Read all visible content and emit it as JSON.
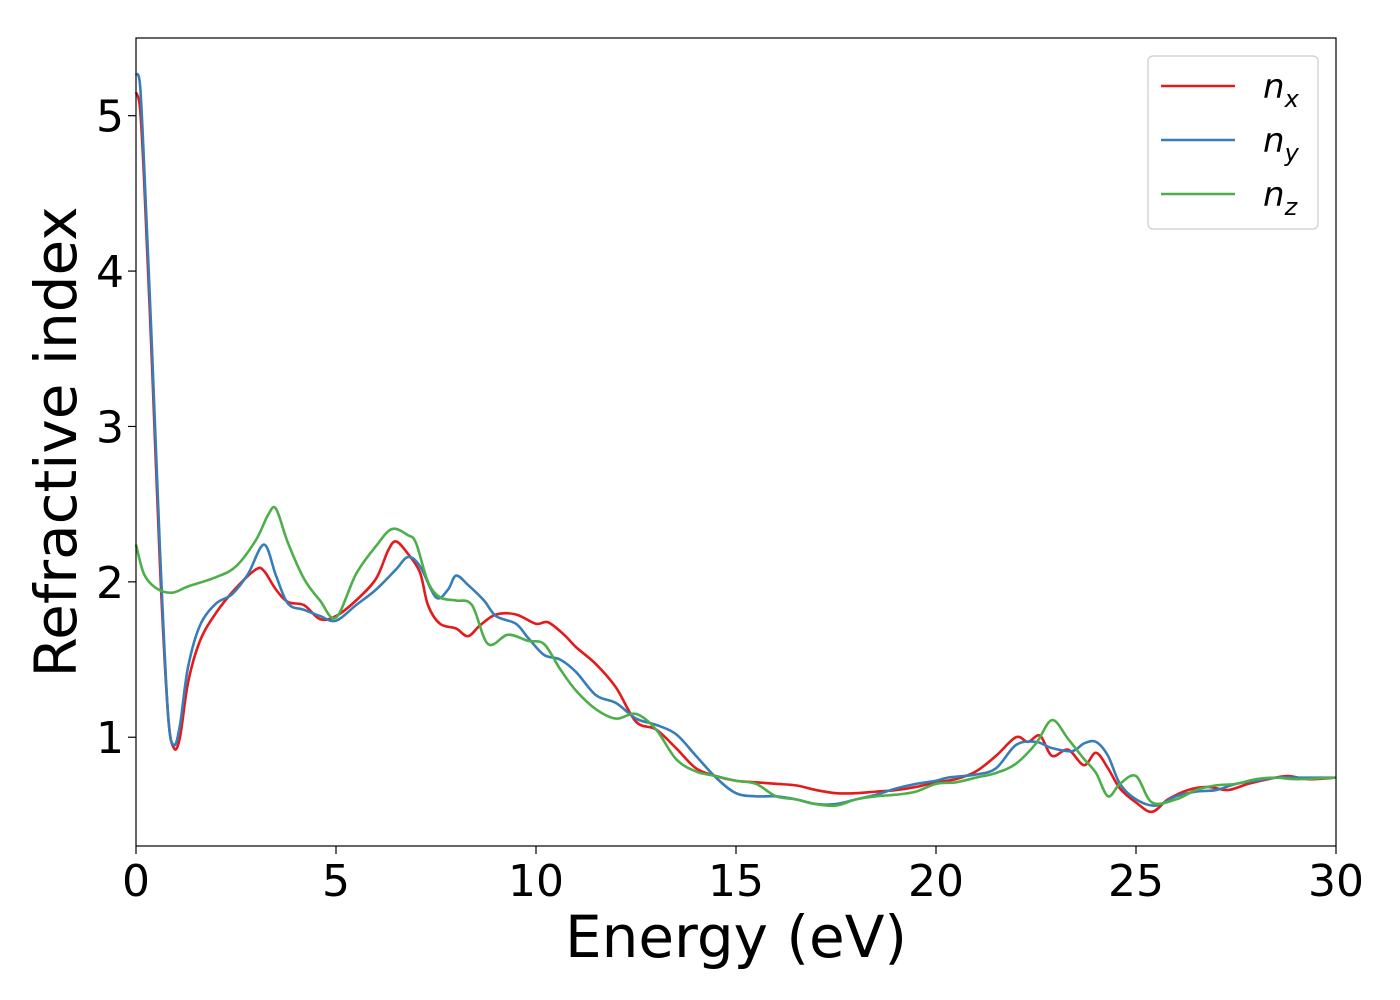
{
  "chart_data": {
    "type": "line",
    "xlabel": "Energy (eV)",
    "ylabel": "Refractive index",
    "xlim": [
      0,
      30
    ],
    "ylim": [
      0.3,
      5.5
    ],
    "x_ticks": [
      0,
      5,
      10,
      15,
      20,
      25,
      30
    ],
    "x_tick_labels": [
      "0",
      "5",
      "10",
      "15",
      "20",
      "25",
      "30"
    ],
    "y_ticks": [
      1,
      2,
      3,
      4,
      5
    ],
    "y_tick_labels": [
      "1",
      "2",
      "3",
      "4",
      "5"
    ],
    "grid": false,
    "legend_position": "top-right",
    "series": [
      {
        "name": "n_x",
        "base": "n",
        "subscript": "x",
        "color": "#e41a1c",
        "points": [
          [
            0,
            5.15
          ],
          [
            0.1,
            5.05
          ],
          [
            0.2,
            4.6
          ],
          [
            0.4,
            3.4
          ],
          [
            0.6,
            2.1
          ],
          [
            0.8,
            1.15
          ],
          [
            0.95,
            0.93
          ],
          [
            1.1,
            1.0
          ],
          [
            1.3,
            1.35
          ],
          [
            1.6,
            1.62
          ],
          [
            2.0,
            1.8
          ],
          [
            2.5,
            1.96
          ],
          [
            3.0,
            2.08
          ],
          [
            3.2,
            2.07
          ],
          [
            3.5,
            1.95
          ],
          [
            3.8,
            1.87
          ],
          [
            4.2,
            1.85
          ],
          [
            4.6,
            1.76
          ],
          [
            5.0,
            1.78
          ],
          [
            5.5,
            1.88
          ],
          [
            6.0,
            2.02
          ],
          [
            6.3,
            2.2
          ],
          [
            6.5,
            2.26
          ],
          [
            6.8,
            2.18
          ],
          [
            7.1,
            2.06
          ],
          [
            7.3,
            1.85
          ],
          [
            7.6,
            1.73
          ],
          [
            8.0,
            1.7
          ],
          [
            8.3,
            1.65
          ],
          [
            8.6,
            1.72
          ],
          [
            9.0,
            1.79
          ],
          [
            9.5,
            1.79
          ],
          [
            10.0,
            1.73
          ],
          [
            10.3,
            1.74
          ],
          [
            10.7,
            1.66
          ],
          [
            11.0,
            1.58
          ],
          [
            11.5,
            1.47
          ],
          [
            12.0,
            1.32
          ],
          [
            12.5,
            1.1
          ],
          [
            13.0,
            1.05
          ],
          [
            13.5,
            0.93
          ],
          [
            14.0,
            0.8
          ],
          [
            14.5,
            0.75
          ],
          [
            15.0,
            0.72
          ],
          [
            15.5,
            0.71
          ],
          [
            16.0,
            0.7
          ],
          [
            16.5,
            0.69
          ],
          [
            17.0,
            0.66
          ],
          [
            17.5,
            0.64
          ],
          [
            18.0,
            0.64
          ],
          [
            18.5,
            0.65
          ],
          [
            19.0,
            0.66
          ],
          [
            19.5,
            0.68
          ],
          [
            20.0,
            0.71
          ],
          [
            20.5,
            0.73
          ],
          [
            21.0,
            0.78
          ],
          [
            21.5,
            0.88
          ],
          [
            22.0,
            1.0
          ],
          [
            22.3,
            0.97
          ],
          [
            22.6,
            1.01
          ],
          [
            22.9,
            0.88
          ],
          [
            23.3,
            0.92
          ],
          [
            23.7,
            0.82
          ],
          [
            24.0,
            0.9
          ],
          [
            24.3,
            0.8
          ],
          [
            24.6,
            0.67
          ],
          [
            25.0,
            0.58
          ],
          [
            25.4,
            0.52
          ],
          [
            25.8,
            0.6
          ],
          [
            26.3,
            0.66
          ],
          [
            26.8,
            0.68
          ],
          [
            27.3,
            0.66
          ],
          [
            27.8,
            0.7
          ],
          [
            28.3,
            0.73
          ],
          [
            28.8,
            0.75
          ],
          [
            29.3,
            0.73
          ],
          [
            30.0,
            0.74
          ]
        ]
      },
      {
        "name": "n_y",
        "base": "n",
        "subscript": "y",
        "color": "#377eb8",
        "points": [
          [
            0,
            5.27
          ],
          [
            0.1,
            5.2
          ],
          [
            0.2,
            4.7
          ],
          [
            0.4,
            3.5
          ],
          [
            0.6,
            2.2
          ],
          [
            0.8,
            1.15
          ],
          [
            0.95,
            0.95
          ],
          [
            1.1,
            1.08
          ],
          [
            1.3,
            1.45
          ],
          [
            1.6,
            1.72
          ],
          [
            2.0,
            1.86
          ],
          [
            2.4,
            1.92
          ],
          [
            2.8,
            2.05
          ],
          [
            3.2,
            2.24
          ],
          [
            3.5,
            2.04
          ],
          [
            3.8,
            1.86
          ],
          [
            4.2,
            1.82
          ],
          [
            4.6,
            1.78
          ],
          [
            5.0,
            1.75
          ],
          [
            5.5,
            1.85
          ],
          [
            6.0,
            1.95
          ],
          [
            6.5,
            2.08
          ],
          [
            6.8,
            2.16
          ],
          [
            7.1,
            2.1
          ],
          [
            7.5,
            1.9
          ],
          [
            7.8,
            1.95
          ],
          [
            8.0,
            2.04
          ],
          [
            8.3,
            1.98
          ],
          [
            8.7,
            1.88
          ],
          [
            9.0,
            1.78
          ],
          [
            9.5,
            1.73
          ],
          [
            9.8,
            1.64
          ],
          [
            10.2,
            1.53
          ],
          [
            10.6,
            1.5
          ],
          [
            11.0,
            1.42
          ],
          [
            11.5,
            1.27
          ],
          [
            12.0,
            1.22
          ],
          [
            12.5,
            1.12
          ],
          [
            13.0,
            1.08
          ],
          [
            13.5,
            1.02
          ],
          [
            14.0,
            0.88
          ],
          [
            14.5,
            0.74
          ],
          [
            15.0,
            0.64
          ],
          [
            15.5,
            0.62
          ],
          [
            16.0,
            0.62
          ],
          [
            16.5,
            0.6
          ],
          [
            17.0,
            0.57
          ],
          [
            17.5,
            0.57
          ],
          [
            18.0,
            0.6
          ],
          [
            18.5,
            0.63
          ],
          [
            19.0,
            0.67
          ],
          [
            19.5,
            0.7
          ],
          [
            20.0,
            0.72
          ],
          [
            20.3,
            0.74
          ],
          [
            21.0,
            0.76
          ],
          [
            21.5,
            0.8
          ],
          [
            22.0,
            0.95
          ],
          [
            22.5,
            0.97
          ],
          [
            22.9,
            0.93
          ],
          [
            23.4,
            0.91
          ],
          [
            23.7,
            0.96
          ],
          [
            24.0,
            0.97
          ],
          [
            24.3,
            0.88
          ],
          [
            24.6,
            0.7
          ],
          [
            25.0,
            0.6
          ],
          [
            25.5,
            0.56
          ],
          [
            26.0,
            0.62
          ],
          [
            26.5,
            0.65
          ],
          [
            27.0,
            0.66
          ],
          [
            27.5,
            0.7
          ],
          [
            28.0,
            0.72
          ],
          [
            28.5,
            0.74
          ],
          [
            29.0,
            0.74
          ],
          [
            30.0,
            0.74
          ]
        ]
      },
      {
        "name": "n_z",
        "base": "n",
        "subscript": "z",
        "color": "#4daf4a",
        "points": [
          [
            0,
            2.24
          ],
          [
            0.2,
            2.05
          ],
          [
            0.5,
            1.96
          ],
          [
            0.9,
            1.93
          ],
          [
            1.3,
            1.97
          ],
          [
            2.0,
            2.03
          ],
          [
            2.5,
            2.1
          ],
          [
            3.0,
            2.27
          ],
          [
            3.3,
            2.43
          ],
          [
            3.5,
            2.47
          ],
          [
            3.8,
            2.25
          ],
          [
            4.2,
            2.02
          ],
          [
            4.6,
            1.88
          ],
          [
            5.0,
            1.77
          ],
          [
            5.5,
            2.05
          ],
          [
            6.0,
            2.23
          ],
          [
            6.4,
            2.34
          ],
          [
            6.8,
            2.3
          ],
          [
            7.0,
            2.25
          ],
          [
            7.3,
            2.0
          ],
          [
            7.6,
            1.9
          ],
          [
            8.0,
            1.88
          ],
          [
            8.4,
            1.85
          ],
          [
            8.8,
            1.6
          ],
          [
            9.3,
            1.66
          ],
          [
            9.8,
            1.62
          ],
          [
            10.2,
            1.6
          ],
          [
            10.6,
            1.44
          ],
          [
            11.0,
            1.3
          ],
          [
            11.5,
            1.18
          ],
          [
            12.0,
            1.12
          ],
          [
            12.5,
            1.15
          ],
          [
            13.0,
            1.05
          ],
          [
            13.5,
            0.86
          ],
          [
            14.0,
            0.78
          ],
          [
            14.5,
            0.75
          ],
          [
            15.0,
            0.72
          ],
          [
            15.5,
            0.7
          ],
          [
            16.0,
            0.62
          ],
          [
            16.5,
            0.6
          ],
          [
            17.0,
            0.57
          ],
          [
            17.5,
            0.56
          ],
          [
            18.0,
            0.6
          ],
          [
            18.5,
            0.62
          ],
          [
            19.0,
            0.63
          ],
          [
            19.5,
            0.65
          ],
          [
            20.0,
            0.7
          ],
          [
            20.5,
            0.71
          ],
          [
            21.0,
            0.74
          ],
          [
            21.5,
            0.77
          ],
          [
            22.0,
            0.83
          ],
          [
            22.5,
            0.96
          ],
          [
            22.9,
            1.11
          ],
          [
            23.3,
            0.99
          ],
          [
            23.7,
            0.86
          ],
          [
            24.0,
            0.77
          ],
          [
            24.3,
            0.62
          ],
          [
            24.6,
            0.7
          ],
          [
            25.0,
            0.75
          ],
          [
            25.4,
            0.58
          ],
          [
            26.0,
            0.6
          ],
          [
            26.5,
            0.66
          ],
          [
            27.0,
            0.69
          ],
          [
            27.5,
            0.7
          ],
          [
            28.0,
            0.73
          ],
          [
            28.5,
            0.74
          ],
          [
            29.0,
            0.73
          ],
          [
            30.0,
            0.74
          ]
        ]
      }
    ]
  }
}
